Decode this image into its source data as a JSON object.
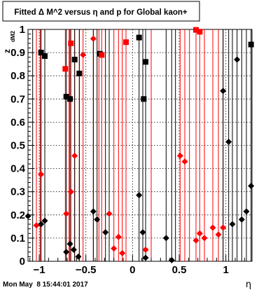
{
  "chart_data": {
    "type": "scatter",
    "title": "Fitted Δ M^2 versus η and p for Global kaon+",
    "xlabel": "η",
    "ylabel": "z",
    "ylabel_sub": "dM2",
    "xlim": [
      -1.12,
      1.28
    ],
    "ylim": [
      0,
      1
    ],
    "x_ticks": [
      -1,
      -0.5,
      0,
      0.5,
      1
    ],
    "x_tick_labels": [
      "−1",
      "−0.5",
      "0",
      "0.5",
      "1"
    ],
    "y_ticks": [
      0,
      0.1,
      0.2,
      0.3,
      0.4,
      0.5,
      0.6,
      0.7,
      0.8,
      0.9,
      1
    ],
    "y_tick_labels": [
      "0",
      "0.1",
      "0.2",
      "0.3",
      "0.4",
      "0.5",
      "0.6",
      "0.7",
      "0.8",
      "0.9",
      "1"
    ],
    "grid": true,
    "colors": {
      "black": "#000000",
      "red": "#ff0000"
    },
    "series": [
      {
        "color": "black",
        "marker": "square",
        "points": [
          {
            "x": -0.98,
            "y": 0.9
          },
          {
            "x": -0.94,
            "y": 0.885
          },
          {
            "x": -0.71,
            "y": 0.71
          },
          {
            "x": -0.67,
            "y": 0.7
          },
          {
            "x": -0.62,
            "y": 0.87
          },
          {
            "x": -0.57,
            "y": 0.81
          },
          {
            "x": -0.35,
            "y": 0.895
          },
          {
            "x": 0.07,
            "y": 0.965
          },
          {
            "x": 0.12,
            "y": 0.7
          },
          {
            "x": 0.14,
            "y": 0.86
          },
          {
            "x": 1.27,
            "y": 0.935
          }
        ]
      },
      {
        "color": "red",
        "marker": "square",
        "points": [
          {
            "x": -0.72,
            "y": 0.83
          },
          {
            "x": -0.66,
            "y": 0.94
          },
          {
            "x": -0.33,
            "y": 0.89
          },
          {
            "x": -0.07,
            "y": 0.945
          },
          {
            "x": 0.68,
            "y": 0.998
          },
          {
            "x": 0.72,
            "y": 0.99
          }
        ]
      },
      {
        "color": "black",
        "marker": "diamond",
        "points": [
          {
            "x": -1.12,
            "y": 0.195
          },
          {
            "x": -0.98,
            "y": 0.16
          },
          {
            "x": -0.94,
            "y": 0.175
          },
          {
            "x": -0.71,
            "y": 0.04
          },
          {
            "x": -0.67,
            "y": 0.075
          },
          {
            "x": -0.63,
            "y": 0.05
          },
          {
            "x": -0.58,
            "y": 0.02
          },
          {
            "x": -0.42,
            "y": 0.215
          },
          {
            "x": -0.38,
            "y": 0.18
          },
          {
            "x": -0.29,
            "y": 0.125
          },
          {
            "x": 0.07,
            "y": 0.285
          },
          {
            "x": 0.11,
            "y": 0.125
          },
          {
            "x": 0.14,
            "y": 0.015
          },
          {
            "x": 0.36,
            "y": 0.1
          },
          {
            "x": 0.42,
            "y": 0.005
          },
          {
            "x": 0.97,
            "y": 0.735
          },
          {
            "x": 1.03,
            "y": 0.515
          },
          {
            "x": 1.07,
            "y": 0.16
          },
          {
            "x": 1.12,
            "y": 0.87
          },
          {
            "x": 1.17,
            "y": 0.18
          },
          {
            "x": 1.22,
            "y": 0.215
          },
          {
            "x": 1.27,
            "y": 0.325
          }
        ]
      },
      {
        "color": "red",
        "marker": "diamond",
        "points": [
          {
            "x": -1.03,
            "y": 0.155
          },
          {
            "x": -0.98,
            "y": 0.375
          },
          {
            "x": -0.71,
            "y": 0.205
          },
          {
            "x": -0.66,
            "y": 0.3
          },
          {
            "x": -0.62,
            "y": 0.455
          },
          {
            "x": -0.53,
            "y": 0.89
          },
          {
            "x": -0.42,
            "y": 0.96
          },
          {
            "x": -0.25,
            "y": 0.205
          },
          {
            "x": -0.2,
            "y": 0.055
          },
          {
            "x": -0.15,
            "y": 0.105
          },
          {
            "x": -0.11,
            "y": 0.035
          },
          {
            "x": 0.14,
            "y": 0.05
          },
          {
            "x": 0.51,
            "y": 0.455
          },
          {
            "x": 0.56,
            "y": 0.43
          },
          {
            "x": 0.68,
            "y": 0.09
          },
          {
            "x": 0.72,
            "y": 0.12
          },
          {
            "x": 0.77,
            "y": 0.1
          },
          {
            "x": 0.86,
            "y": 0.145
          },
          {
            "x": 0.92,
            "y": 0.115
          },
          {
            "x": 0.97,
            "y": 0.145
          }
        ]
      }
    ],
    "error_lines": {
      "red": [
        -1.03,
        -0.99,
        -0.94,
        -0.72,
        -0.68,
        -0.66,
        -0.62,
        -0.57,
        -0.53,
        -0.42,
        -0.36,
        -0.33,
        -0.25,
        -0.2,
        -0.15,
        -0.11,
        -0.07,
        0.14,
        0.2,
        0.51,
        0.56,
        0.61,
        0.68,
        0.72,
        0.77,
        0.86,
        0.92,
        0.97
      ],
      "black": [
        -1.12,
        -1.07,
        -0.98,
        -0.94,
        -0.71,
        -0.67,
        -0.62,
        -0.57,
        -0.42,
        -0.38,
        -0.29,
        -0.25,
        0.07,
        0.11,
        0.14,
        0.36,
        0.42,
        0.46,
        0.97,
        1.03,
        1.07,
        1.12,
        1.17,
        1.22,
        1.27
      ]
    }
  },
  "footer": {
    "timestamp": "Mon May  8 15:44:01 2017"
  }
}
